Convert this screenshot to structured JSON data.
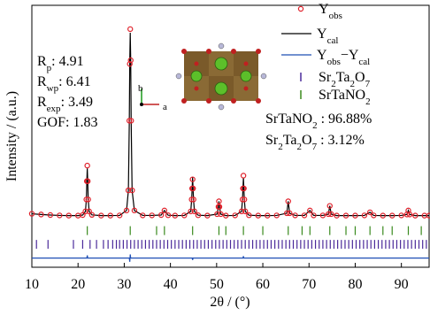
{
  "chart_data": {
    "type": "rietveld",
    "x_label": "2θ / (°)",
    "y_label": "Intensity / (a.u.)",
    "xlim": [
      10,
      96
    ],
    "xticks": [
      10,
      20,
      30,
      40,
      50,
      60,
      70,
      80,
      90
    ],
    "ylim": [
      -28,
      115
    ],
    "legend": "upper right",
    "x": [
      10,
      12,
      14,
      16,
      18,
      20,
      21,
      21.6,
      21.8,
      21.9,
      22.0,
      22.1,
      22.2,
      22.4,
      23,
      25,
      27,
      29,
      30.5,
      30.9,
      31.1,
      31.2,
      31.3,
      31.4,
      31.5,
      31.7,
      32.2,
      34,
      36,
      38,
      38.7,
      39.5,
      41,
      43,
      44.4,
      44.6,
      44.7,
      44.8,
      44.9,
      45.0,
      45.2,
      46,
      48,
      50.1,
      50.4,
      50.5,
      50.6,
      50.9,
      52,
      54,
      55.4,
      55.6,
      55.7,
      55.8,
      55.9,
      56.0,
      56.2,
      57,
      59,
      61,
      63,
      65.2,
      65.5,
      65.8,
      67,
      69,
      70.2,
      71,
      73,
      74.2,
      74.5,
      74.8,
      76,
      78,
      80,
      82,
      83.2,
      84,
      86,
      88,
      90,
      91.2,
      91.5,
      91.8,
      93,
      95,
      96
    ],
    "series": [
      {
        "name": [
          "Y",
          "obs"
        ],
        "color": "#e0202a",
        "style": "circles",
        "values": [
          1.2,
          0.8,
          0.5,
          0.3,
          0.2,
          0.2,
          0.5,
          2.5,
          9,
          19,
          27.5,
          19,
          9,
          2.5,
          0.6,
          0.2,
          0.2,
          0.3,
          3,
          14,
          52,
          83,
          102,
          85,
          52,
          14,
          3,
          0.3,
          0.3,
          0.5,
          3,
          0.4,
          0.2,
          0.3,
          2.5,
          9,
          15,
          20,
          15,
          9,
          2.5,
          0.4,
          0.2,
          1,
          5,
          8,
          5,
          1,
          0.2,
          0.3,
          2.5,
          9,
          15,
          22,
          15,
          9,
          2.5,
          0.4,
          0.2,
          0.2,
          0.3,
          1.5,
          8,
          1.5,
          0.3,
          0.3,
          3,
          0.3,
          0.3,
          1,
          5.5,
          1,
          0.2,
          0.2,
          0.2,
          0.3,
          2,
          0.3,
          0.2,
          0.2,
          0.3,
          0.8,
          3,
          0.8,
          0.2,
          0.2,
          0.2
        ]
      },
      {
        "name": [
          "Y",
          "cal"
        ],
        "color": "#000000",
        "style": "line",
        "values": [
          1.2,
          0.8,
          0.5,
          0.3,
          0.2,
          0.2,
          0.5,
          2.5,
          9,
          19,
          26,
          19,
          9,
          2.5,
          0.6,
          0.2,
          0.2,
          0.3,
          3,
          14,
          52,
          85,
          100,
          85,
          52,
          14,
          3,
          0.3,
          0.3,
          0.5,
          3,
          0.4,
          0.2,
          0.3,
          2.5,
          9,
          15,
          21,
          15,
          9,
          2.5,
          0.4,
          0.2,
          1,
          5,
          8,
          5,
          1,
          0.2,
          0.3,
          2.5,
          9,
          15,
          21,
          15,
          9,
          2.5,
          0.4,
          0.2,
          0.2,
          0.3,
          1.5,
          8,
          1.5,
          0.3,
          0.3,
          3,
          0.3,
          0.3,
          1,
          5.5,
          1,
          0.2,
          0.2,
          0.2,
          0.3,
          2,
          0.3,
          0.2,
          0.2,
          0.3,
          0.8,
          3,
          0.8,
          0.2,
          0.2,
          0.2
        ]
      },
      {
        "name": [
          "Y",
          "obs",
          "−Y",
          "cal"
        ],
        "color": "#1f4fb5",
        "style": "line",
        "values": [
          -23,
          -23,
          -23,
          -23,
          -23,
          -23,
          -23,
          -23,
          -23,
          -23,
          -21.5,
          -23,
          -23,
          -23,
          -23,
          -23,
          -23,
          -23,
          -23,
          -23,
          -23,
          -25,
          -21,
          -23,
          -23,
          -23,
          -23,
          -23,
          -23,
          -23,
          -23,
          -23,
          -23,
          -23,
          -23,
          -23,
          -23,
          -24,
          -23,
          -23,
          -23,
          -23,
          -23,
          -23,
          -23,
          -23,
          -23,
          -23,
          -23,
          -23,
          -23,
          -23,
          -23,
          -22,
          -23,
          -23,
          -23,
          -23,
          -23,
          -23,
          -23,
          -23,
          -23,
          -23,
          -23,
          -23,
          -23,
          -23,
          -23,
          -23,
          -23,
          -23,
          -23,
          -23,
          -23,
          -23,
          -23,
          -23,
          -23,
          -23,
          -23,
          -23,
          -23,
          -23,
          -23,
          -23,
          -23
        ]
      }
    ],
    "phases": [
      {
        "name": [
          "Sr",
          "2",
          "Ta",
          "2",
          "O",
          "7"
        ],
        "color": "#4b2a9a",
        "fraction": "3.12%",
        "positions": [
          11,
          13.5,
          19,
          21,
          22.6,
          24,
          25.5,
          26.5,
          27.5,
          28.3,
          29,
          29.8,
          30.6,
          31.4,
          32.2,
          33,
          33.8,
          34.6,
          35.4,
          36.2,
          37,
          37.8,
          38.6,
          39.4,
          40.2,
          41,
          41.8,
          42.6,
          43.4,
          44.2,
          45,
          45.8,
          46.6,
          47.4,
          48.2,
          49,
          49.8,
          50.6,
          51.4,
          52.2,
          53,
          53.8,
          54.6,
          55.4,
          56.2,
          57,
          57.8,
          58.6,
          59.4,
          60.2,
          61,
          61.8,
          62.6,
          63.4,
          64.2,
          65,
          65.8,
          66.6,
          67.4,
          68.2,
          69,
          69.8,
          70.6,
          71.4,
          72.2,
          73,
          73.8,
          74.6,
          75.4,
          76.2,
          77,
          77.8,
          78.6,
          79.4,
          80.2,
          81,
          81.8,
          82.6,
          83.4,
          84.2,
          85,
          85.8,
          86.6,
          87.4,
          88.2,
          89,
          89.8,
          90.6,
          91.4,
          92.2,
          93,
          93.8,
          94.6,
          95.4
        ]
      },
      {
        "name": [
          "SrTaNO",
          "2"
        ],
        "color": "#3a8a1e",
        "fraction": "96.88%",
        "positions": [
          22,
          31.3,
          37,
          38.7,
          44.8,
          50.5,
          52,
          55.8,
          60,
          65.5,
          68.5,
          70.2,
          74.5,
          78,
          80,
          83.2,
          86,
          88,
          91.5,
          94.3
        ]
      }
    ],
    "fraction_separator": " : ",
    "stats": [
      {
        "label": [
          "R",
          "p"
        ],
        "sep": ": ",
        "value": 4.91
      },
      {
        "label": [
          "R",
          "wp"
        ],
        "sep": ": ",
        "value": 6.41
      },
      {
        "label": [
          "R",
          "exp"
        ],
        "sep": ": ",
        "value": 3.49
      },
      {
        "label": [
          "GOF"
        ],
        "sep": ": ",
        "value": 1.83
      }
    ],
    "inset_axes": [
      "b",
      "a"
    ]
  }
}
